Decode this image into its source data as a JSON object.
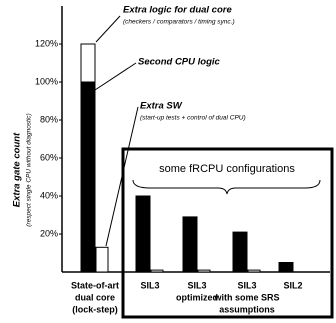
{
  "chart_data": {
    "type": "bar",
    "y_label": "Extra gate count",
    "y_sublabel": "(respect single CPU without diagnostic)",
    "categories": [
      [
        "State-of-art",
        "dual core",
        "(lock-step)"
      ],
      [
        "SIL3"
      ],
      [
        "SIL3",
        "optimized"
      ],
      [
        "SIL3",
        "with some SRS",
        "assumptions"
      ],
      [
        "SIL2"
      ]
    ],
    "series": [
      {
        "color": "#000000",
        "values": [
          100,
          40,
          29,
          21,
          5
        ]
      },
      {
        "color": "#ffffff",
        "stack": true,
        "values": [
          20,
          null,
          null,
          null,
          null
        ]
      },
      {
        "color": "#ffffff",
        "values": [
          13,
          1,
          1,
          1,
          null
        ]
      }
    ],
    "ylim": [
      0,
      140
    ],
    "yticks": [
      {
        "value": 20,
        "label": "20%"
      },
      {
        "value": 40,
        "label": "40%"
      },
      {
        "value": 60,
        "label": "60%"
      },
      {
        "value": 80,
        "label": "80%"
      },
      {
        "value": 100,
        "label": "100%"
      },
      {
        "value": 120,
        "label": "120%"
      }
    ],
    "annotations": [
      {
        "text": "Extra logic for dual core",
        "note": "(checkers / comparators / timing sync.)"
      },
      {
        "text": "Second CPU logic"
      },
      {
        "text": "Extra SW",
        "note": "(start-up tests + control of dual CPU)"
      },
      {
        "text": "some fRCPU configurations"
      }
    ]
  }
}
